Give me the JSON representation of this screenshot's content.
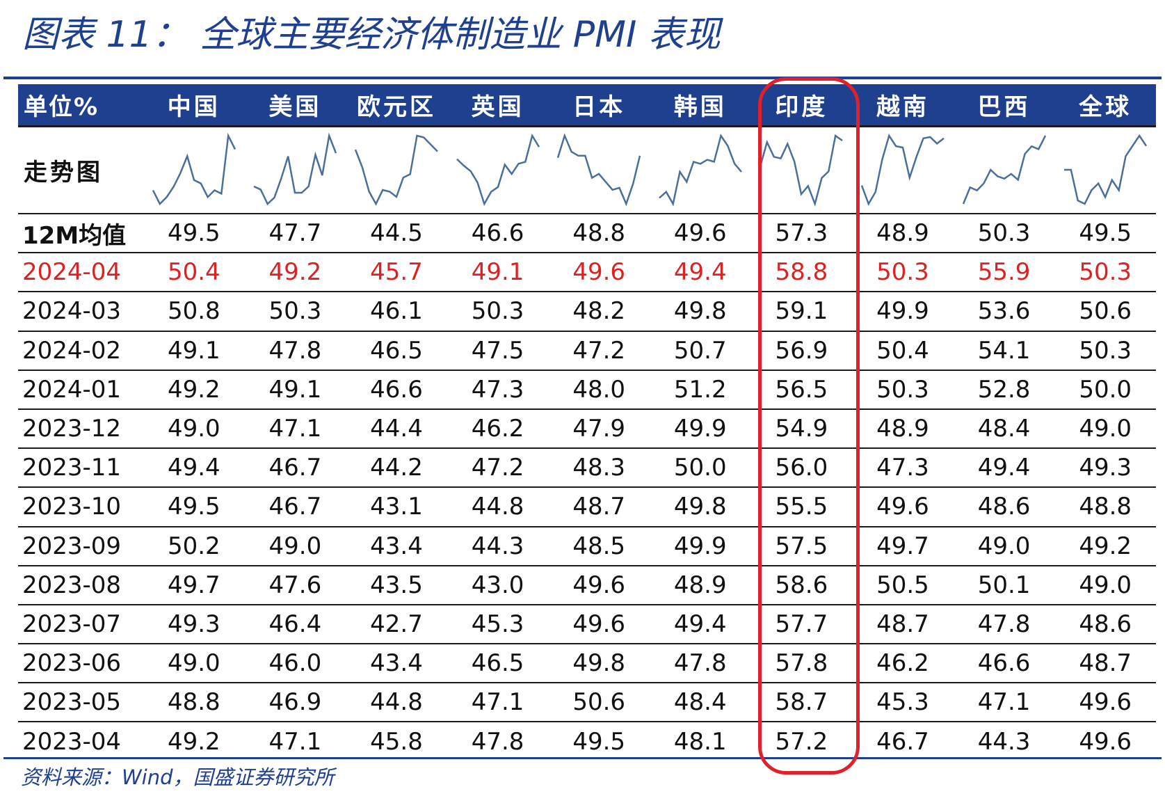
{
  "title": "图表 11： 全球主要经济体制造业 PMI 表现",
  "source": "资料来源：Wind，国盛证券研究所",
  "colors": {
    "header_bg": "#1f3f8f",
    "highlight_text": "#e02020",
    "box": "#e0202a",
    "spark": "#4a6f9a"
  },
  "table": {
    "corner_label": "单位%",
    "columns": [
      "中国",
      "美国",
      "欧元区",
      "英国",
      "日本",
      "韩国",
      "印度",
      "越南",
      "巴西",
      "全球"
    ],
    "sparkline_label": "走势图",
    "rows": [
      {
        "label": "12M均值",
        "values": [
          "49.5",
          "47.7",
          "44.5",
          "46.6",
          "48.8",
          "49.6",
          "57.3",
          "48.9",
          "50.3",
          "49.5"
        ]
      },
      {
        "label": "2024-04",
        "values": [
          "50.4",
          "49.2",
          "45.7",
          "49.1",
          "49.6",
          "49.4",
          "58.8",
          "50.3",
          "55.9",
          "50.3"
        ]
      },
      {
        "label": "2024-03",
        "values": [
          "50.8",
          "50.3",
          "46.1",
          "50.3",
          "48.2",
          "49.8",
          "59.1",
          "49.9",
          "53.6",
          "50.6"
        ]
      },
      {
        "label": "2024-02",
        "values": [
          "49.1",
          "47.8",
          "46.5",
          "47.5",
          "47.2",
          "50.7",
          "56.9",
          "50.4",
          "54.1",
          "50.3"
        ]
      },
      {
        "label": "2024-01",
        "values": [
          "49.2",
          "49.1",
          "46.6",
          "47.3",
          "48.0",
          "51.2",
          "56.5",
          "50.3",
          "52.8",
          "50.0"
        ]
      },
      {
        "label": "2023-12",
        "values": [
          "49.0",
          "47.1",
          "44.4",
          "46.2",
          "47.9",
          "49.9",
          "54.9",
          "48.9",
          "48.4",
          "49.0"
        ]
      },
      {
        "label": "2023-11",
        "values": [
          "49.4",
          "46.7",
          "44.2",
          "47.2",
          "48.3",
          "50.0",
          "56.0",
          "47.3",
          "49.4",
          "49.3"
        ]
      },
      {
        "label": "2023-10",
        "values": [
          "49.5",
          "46.7",
          "43.1",
          "44.8",
          "48.7",
          "49.8",
          "55.5",
          "49.6",
          "48.6",
          "48.8"
        ]
      },
      {
        "label": "2023-09",
        "values": [
          "50.2",
          "49.0",
          "43.4",
          "44.3",
          "48.5",
          "49.9",
          "57.5",
          "49.7",
          "49.0",
          "49.2"
        ]
      },
      {
        "label": "2023-08",
        "values": [
          "49.7",
          "47.6",
          "43.5",
          "43.0",
          "49.6",
          "48.9",
          "58.6",
          "50.5",
          "50.1",
          "49.0"
        ]
      },
      {
        "label": "2023-07",
        "values": [
          "49.3",
          "46.4",
          "42.7",
          "45.3",
          "49.6",
          "49.4",
          "57.7",
          "48.7",
          "47.8",
          "48.6"
        ]
      },
      {
        "label": "2023-06",
        "values": [
          "49.0",
          "46.0",
          "43.4",
          "46.5",
          "49.8",
          "47.8",
          "57.8",
          "46.2",
          "46.6",
          "48.7"
        ]
      },
      {
        "label": "2023-05",
        "values": [
          "48.8",
          "46.9",
          "44.8",
          "47.1",
          "50.6",
          "48.4",
          "58.7",
          "45.3",
          "47.1",
          "49.6"
        ]
      },
      {
        "label": "2023-04",
        "values": [
          "49.2",
          "47.1",
          "45.8",
          "47.8",
          "49.5",
          "48.1",
          "57.2",
          "46.7",
          "44.3",
          "49.6"
        ]
      }
    ]
  }
}
